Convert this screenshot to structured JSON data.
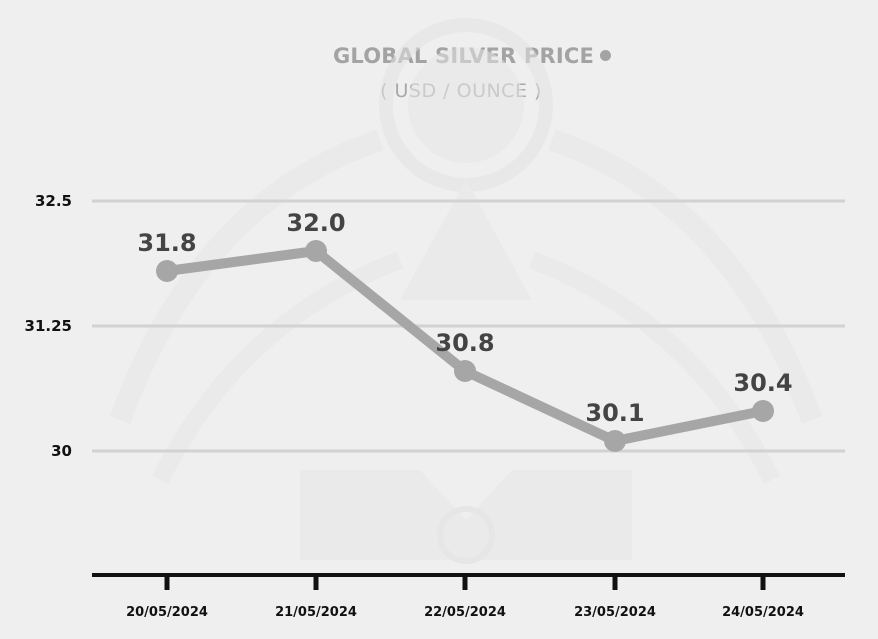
{
  "chart_data": {
    "type": "line",
    "title": "GLOBAL SILVER PRICE",
    "subtitle": "( USD / OUNCE )",
    "categories": [
      "20/05/2024",
      "21/05/2024",
      "22/05/2024",
      "23/05/2024",
      "24/05/2024"
    ],
    "series": [
      {
        "values": [
          31.8,
          32.0,
          30.8,
          30.1,
          30.4
        ]
      }
    ],
    "data_labels": [
      "31.8",
      "32.0",
      "30.8",
      "30.1",
      "30.4"
    ],
    "yticks": [
      30,
      31.25,
      32.5
    ],
    "ytick_labels": [
      "30",
      "31.25",
      "32.5"
    ],
    "ylim": [
      28.75,
      32.5
    ],
    "grid": true,
    "legend": "none",
    "colors": {
      "line": "#a6a6a6",
      "marker": "#a6a6a6",
      "grid": "#d2d2d2",
      "axis": "#111111",
      "background": "#efefef",
      "data_label": "#444444"
    }
  }
}
